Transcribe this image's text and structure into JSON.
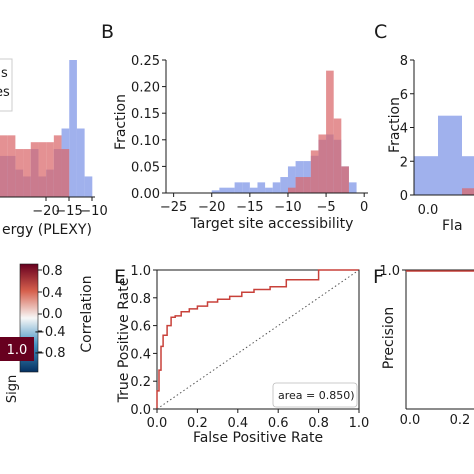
{
  "colors": {
    "blue": "#7b93e6",
    "red": "#d9666a",
    "overlap": "#6f5ea3",
    "roc": "#c8413a"
  },
  "panels": {
    "b": "B",
    "c": "C",
    "e": "E",
    "f": "F"
  },
  "panel_a": {
    "xlabel_fragment": "ergy (PLEXY)",
    "xticks": [
      "−20",
      "−15",
      "−10"
    ],
    "legend_fragments": [
      "s",
      "es"
    ]
  },
  "panel_c": {
    "ylabel": "Fraction",
    "yticks": [
      "0",
      "2",
      "4",
      "6",
      "8"
    ],
    "xtick": "0.0",
    "xlabel_fragment": "Fla"
  },
  "panel_d": {
    "colorbar_label": "Correlation",
    "colorbar_ticks": [
      "0.8",
      "0.4",
      "0.0",
      "−0.4",
      "−0.8"
    ],
    "cell_value": "1.0",
    "row_label_fragment": "Sign"
  },
  "panel_f": {
    "ylabel": "Precision",
    "ytick": "1.0",
    "xticks": [
      "0.0",
      "0.2"
    ]
  },
  "chart_data": [
    {
      "panel": "B",
      "type": "bar",
      "xlabel": "Target site accessibility",
      "ylabel": "Fraction",
      "xlim": [
        -26,
        0.5
      ],
      "ylim": [
        0,
        0.25
      ],
      "xticks": [
        "−25",
        "−20",
        "−15",
        "−10",
        "−5",
        "0"
      ],
      "yticks": [
        "0.00",
        "0.05",
        "0.10",
        "0.15",
        "0.20",
        "0.25"
      ],
      "bin_edges": [
        -20,
        -19,
        -18,
        -17,
        -16,
        -15,
        -14,
        -13,
        -12,
        -11,
        -10,
        -9,
        -8,
        -7,
        -6,
        -5,
        -4,
        -3,
        -2,
        -1
      ],
      "series": [
        {
          "color": "blue",
          "values": [
            0.005,
            0.01,
            0.01,
            0.02,
            0.02,
            0.01,
            0.02,
            0.01,
            0.02,
            0.03,
            0.05,
            0.06,
            0.06,
            0.07,
            0.1,
            0.11,
            0.1,
            0.05,
            0.02
          ]
        },
        {
          "color": "red",
          "values": [
            0,
            0,
            0,
            0,
            0,
            0,
            0,
            0,
            0,
            0,
            0.01,
            0.03,
            0.03,
            0.08,
            0.11,
            0.23,
            0.14,
            0.05,
            0
          ]
        }
      ]
    },
    {
      "panel": "E",
      "type": "line",
      "xlabel": "False Positive Rate",
      "ylabel": "True Positive Rate",
      "xlim": [
        0,
        1
      ],
      "ylim": [
        0,
        1
      ],
      "xticks": [
        "0.0",
        "0.2",
        "0.4",
        "0.6",
        "0.8",
        "1.0"
      ],
      "yticks": [
        "0.0",
        "0.2",
        "0.4",
        "0.6",
        "0.8",
        "1.0"
      ],
      "annotation": "area = 0.850)",
      "series": [
        {
          "x": [
            0,
            0,
            0.01,
            0.01,
            0.02,
            0.02,
            0.03,
            0.03,
            0.05,
            0.05,
            0.07,
            0.07,
            0.09,
            0.09,
            0.12,
            0.12,
            0.16,
            0.16,
            0.2,
            0.2,
            0.25,
            0.25,
            0.3,
            0.3,
            0.36,
            0.36,
            0.42,
            0.42,
            0.48,
            0.48,
            0.56,
            0.56,
            0.64,
            0.64,
            0.8,
            0.8,
            1.0
          ],
          "y": [
            0,
            0.13,
            0.13,
            0.28,
            0.28,
            0.45,
            0.45,
            0.53,
            0.53,
            0.6,
            0.6,
            0.66,
            0.66,
            0.67,
            0.67,
            0.7,
            0.7,
            0.72,
            0.72,
            0.74,
            0.74,
            0.77,
            0.77,
            0.79,
            0.79,
            0.81,
            0.81,
            0.84,
            0.84,
            0.86,
            0.86,
            0.88,
            0.88,
            0.93,
            0.93,
            1.0,
            1.0
          ]
        },
        {
          "style": "dotted",
          "x": [
            0,
            1
          ],
          "y": [
            0,
            1
          ]
        }
      ]
    },
    {
      "panel": "C",
      "type": "bar",
      "ylim": [
        0,
        8
      ],
      "bin_edges": [
        0.0,
        0.05,
        0.1,
        0.15
      ],
      "series": [
        {
          "color": "blue",
          "values": [
            2.3,
            4.7,
            2.3
          ]
        },
        {
          "color": "red",
          "values": [
            0,
            0,
            0.4
          ]
        }
      ]
    },
    {
      "panel": "A",
      "type": "bar",
      "xlim": [
        -23,
        -10
      ],
      "bin_edges": [
        -23,
        -22,
        -21,
        -20,
        -19,
        -18,
        -17,
        -16,
        -15,
        -14,
        -13,
        -12,
        -11
      ],
      "series": [
        {
          "color": "blue",
          "values": [
            0.3,
            0.3,
            0.2,
            0.15,
            0.35,
            0.15,
            0.2,
            0.35,
            0.5,
            1.0,
            0.5,
            0.15
          ]
        },
        {
          "color": "red",
          "values": [
            0.45,
            0.45,
            0.35,
            0.35,
            0.4,
            0.4,
            0.4,
            0.45,
            0.35,
            0.0,
            0.0,
            0.0
          ]
        }
      ]
    }
  ]
}
